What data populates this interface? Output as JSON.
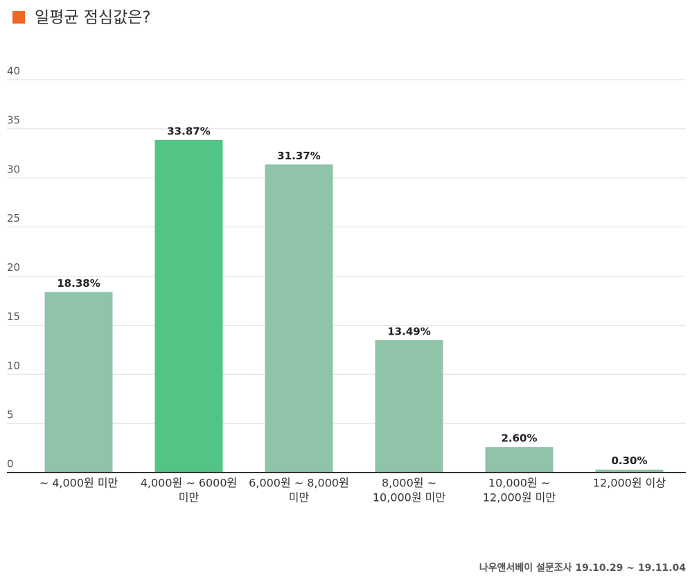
{
  "chart_data": {
    "type": "bar",
    "title": "일평균 점심값은?",
    "categories": [
      [
        "~ 4,000원 미만"
      ],
      [
        "4,000원 ~ 6000원",
        "미만"
      ],
      [
        "6,000원 ~ 8,000원",
        "미만"
      ],
      [
        "8,000원 ~",
        "10,000원 미만"
      ],
      [
        "10,000원 ~",
        "12,000원 미만"
      ],
      [
        "12,000원 이상"
      ]
    ],
    "values": [
      18.38,
      33.87,
      31.37,
      13.49,
      2.6,
      0.3
    ],
    "value_labels": [
      "18.38%",
      "33.87%",
      "31.37%",
      "13.49%",
      "2.60%",
      "0.30%"
    ],
    "colors": [
      "#8fc4a8",
      "#52c486",
      "#8fc4a8",
      "#8fc4a8",
      "#8fc4a8",
      "#8fc4a8"
    ],
    "ylim": [
      0,
      40
    ],
    "yticks": [
      0,
      5,
      10,
      15,
      20,
      25,
      30,
      35,
      40
    ],
    "grid": true,
    "source": "나우앤서베이 설문조사 19.10.29 ~ 19.11.04"
  }
}
